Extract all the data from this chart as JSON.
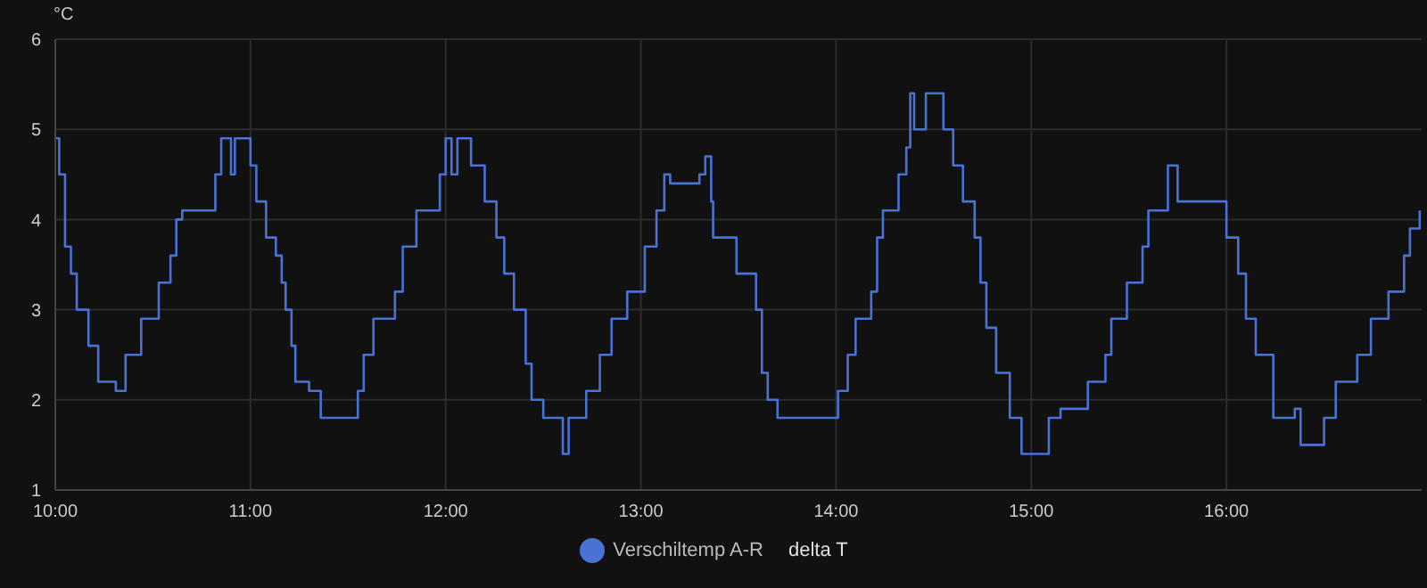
{
  "chart_data": {
    "type": "step",
    "title": "delta T",
    "ylabel": "°C",
    "x": [
      10,
      10.02,
      10.05,
      10.08,
      10.11,
      10.17,
      10.22,
      10.31,
      10.36,
      10.44,
      10.53,
      10.59,
      10.62,
      10.65,
      10.82,
      10.85,
      10.9,
      10.92,
      11,
      11.03,
      11.08,
      11.13,
      11.16,
      11.18,
      11.21,
      11.23,
      11.3,
      11.36,
      11.55,
      11.58,
      11.63,
      11.74,
      11.78,
      11.85,
      11.97,
      12,
      12.03,
      12.06,
      12.13,
      12.2,
      12.26,
      12.3,
      12.35,
      12.41,
      12.44,
      12.5,
      12.6,
      12.63,
      12.72,
      12.79,
      12.85,
      12.93,
      13.02,
      13.08,
      13.12,
      13.15,
      13.3,
      13.33,
      13.36,
      13.37,
      13.49,
      13.59,
      13.62,
      13.65,
      13.7,
      13.9,
      14.01,
      14.06,
      14.1,
      14.18,
      14.21,
      14.24,
      14.32,
      14.36,
      14.38,
      14.4,
      14.46,
      14.55,
      14.6,
      14.65,
      14.71,
      14.74,
      14.77,
      14.82,
      14.89,
      14.95,
      15.09,
      15.15,
      15.29,
      15.38,
      15.41,
      15.49,
      15.57,
      15.6,
      15.7,
      15.75,
      15.87,
      16,
      16.06,
      16.1,
      16.15,
      16.24,
      16.35,
      16.38,
      16.5,
      16.56,
      16.67,
      16.74,
      16.83,
      16.91,
      16.94,
      16.99
    ],
    "series": [
      {
        "name": "Verschiltemp A-R",
        "color": "#4a72d4",
        "values": [
          4.9,
          4.5,
          3.7,
          3.4,
          3,
          2.6,
          2.2,
          2.1,
          2.5,
          2.9,
          3.3,
          3.6,
          4,
          4.1,
          4.5,
          4.9,
          4.5,
          4.9,
          4.6,
          4.2,
          3.8,
          3.6,
          3.3,
          3,
          2.6,
          2.2,
          2.1,
          1.8,
          2.1,
          2.5,
          2.9,
          3.2,
          3.7,
          4.1,
          4.5,
          4.9,
          4.5,
          4.9,
          4.6,
          4.2,
          3.8,
          3.4,
          3,
          2.4,
          2,
          1.8,
          1.4,
          1.8,
          2.1,
          2.5,
          2.9,
          3.2,
          3.7,
          4.1,
          4.5,
          4.4,
          4.5,
          4.7,
          4.2,
          3.8,
          3.4,
          3,
          2.3,
          2,
          1.8,
          1.8,
          2.1,
          2.5,
          2.9,
          3.2,
          3.8,
          4.1,
          4.5,
          4.8,
          5.4,
          5,
          5.4,
          5,
          4.6,
          4.2,
          3.8,
          3.3,
          2.8,
          2.3,
          1.8,
          1.4,
          1.8,
          1.9,
          2.2,
          2.5,
          2.9,
          3.3,
          3.7,
          4.1,
          4.6,
          4.2,
          4.2,
          3.8,
          3.4,
          2.9,
          2.5,
          1.8,
          1.9,
          1.5,
          1.8,
          2.2,
          2.5,
          2.9,
          3.2,
          3.6,
          3.9,
          4.1
        ]
      }
    ],
    "xlim": [
      10,
      17
    ],
    "xticks": [
      {
        "value": 10,
        "label": "10:00"
      },
      {
        "value": 11,
        "label": "11:00"
      },
      {
        "value": 12,
        "label": "12:00"
      },
      {
        "value": 13,
        "label": "13:00"
      },
      {
        "value": 14,
        "label": "14:00"
      },
      {
        "value": 15,
        "label": "15:00"
      },
      {
        "value": 16,
        "label": "16:00"
      }
    ],
    "ylim": [
      1,
      6
    ],
    "yticks": [
      1,
      2,
      3,
      4,
      5,
      6
    ],
    "grid": true,
    "legend": "bottom"
  }
}
